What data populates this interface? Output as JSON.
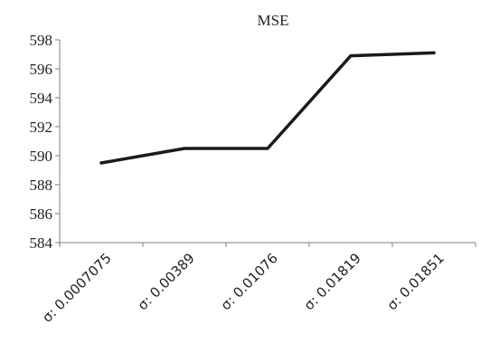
{
  "chart_data": {
    "type": "line",
    "title": "MSE",
    "xlabel": "",
    "ylabel": "",
    "categories": [
      "σ: 0.0007075",
      "σ: 0.00389",
      "σ: 0.01076",
      "σ: 0.01819",
      "σ: 0.01851"
    ],
    "series": [
      {
        "values": [
          589.5,
          590.5,
          590.5,
          596.9,
          597.1
        ]
      }
    ],
    "ylim": [
      584,
      598
    ],
    "yticks": [
      584,
      586,
      588,
      590,
      592,
      594,
      596,
      598
    ],
    "grid": false,
    "legend": "none"
  }
}
